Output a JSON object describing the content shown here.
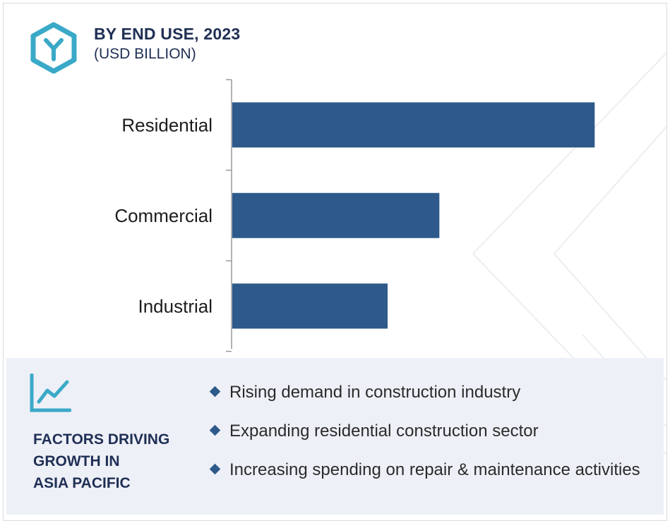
{
  "header": {
    "title": "BY END USE, 2023",
    "subtitle": "(USD BILLION)"
  },
  "chart_data": {
    "type": "bar",
    "orientation": "horizontal",
    "categories": [
      "Residential",
      "Commercial",
      "Industrial"
    ],
    "values": [
      7.0,
      4.0,
      3.0
    ],
    "xlim": [
      0,
      7.5
    ],
    "grid": false,
    "bar_color": "#2d5a8b"
  },
  "factors": {
    "title_lines": [
      "FACTORS DRIVING",
      "GROWTH IN",
      "ASIA PACIFIC"
    ],
    "items": [
      "Rising demand in construction industry",
      "Expanding residential construction sector",
      "Increasing spending on repair & maintenance activities"
    ]
  },
  "colors": {
    "accent": "#3aa9c8",
    "navy": "#1f2f55",
    "bar": "#2d5a8b",
    "panel": "#eef0f7"
  },
  "icons": {
    "logo": "hexagon-y-logo-icon",
    "trend": "line-chart-trend-icon",
    "bullet": "diamond-bullet-icon"
  }
}
